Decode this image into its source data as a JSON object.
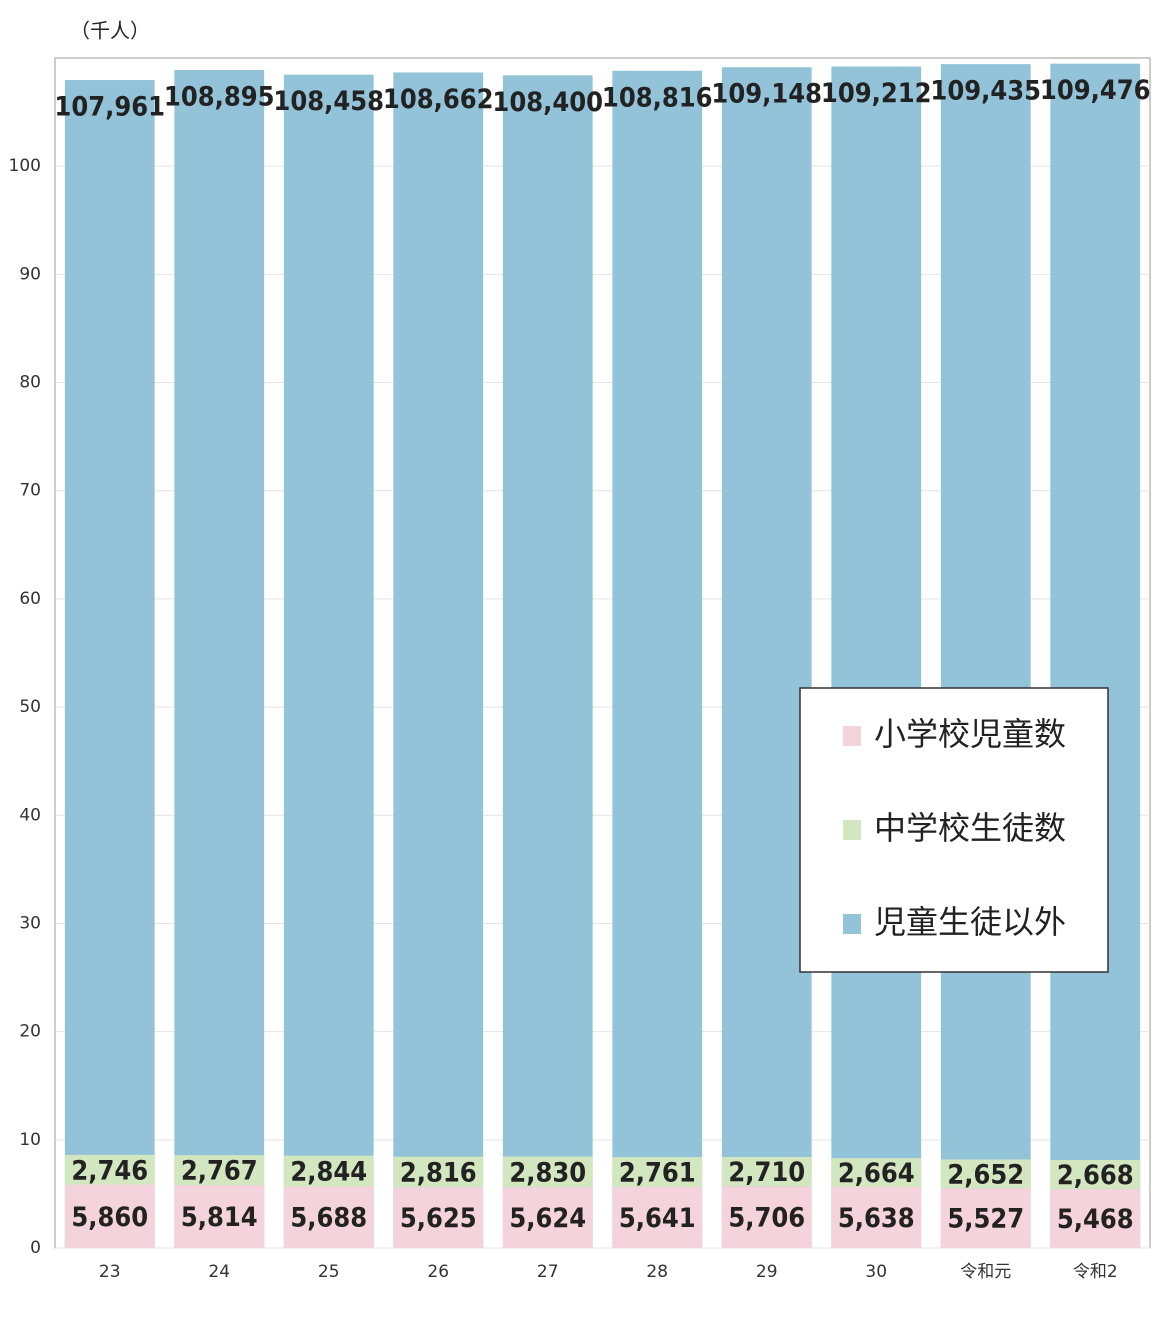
{
  "chart_data": {
    "type": "bar",
    "unit_label": "（千人）",
    "categories": [
      "23",
      "24",
      "25",
      "26",
      "27",
      "28",
      "29",
      "30",
      "令和元",
      "令和2"
    ],
    "series": [
      {
        "name": "小学校児童数",
        "color": "#f5d3dc",
        "values": [
          5.86,
          5.814,
          5.688,
          5.625,
          5.624,
          5.641,
          5.706,
          5.638,
          5.527,
          5.468
        ],
        "value_labels": [
          "5,860",
          "5,814",
          "5,688",
          "5,625",
          "5,624",
          "5,641",
          "5,706",
          "5,638",
          "5,527",
          "5,468"
        ]
      },
      {
        "name": "中学校生徒数",
        "color": "#d2e7c0",
        "values": [
          2.746,
          2.767,
          2.844,
          2.816,
          2.83,
          2.761,
          2.71,
          2.664,
          2.652,
          2.668
        ],
        "value_labels": [
          "2,746",
          "2,767",
          "2,844",
          "2,816",
          "2,830",
          "2,761",
          "2,710",
          "2,664",
          "2,652",
          "2,668"
        ]
      },
      {
        "name": "児童生徒以外",
        "color": "#93c3d8",
        "values": [
          107.961,
          108.895,
          108.458,
          108.662,
          108.4,
          108.816,
          109.148,
          109.212,
          109.435,
          109.476
        ],
        "value_labels": [
          "107,961",
          "108,895",
          "108,458",
          "108,662",
          "108,400",
          "108,816",
          "109,148",
          "109,212",
          "109,435",
          "109,476"
        ]
      }
    ],
    "ylim": [
      0,
      110
    ],
    "yticks": [
      0,
      10,
      20,
      30,
      40,
      50,
      60,
      70,
      80,
      90,
      100
    ],
    "grid": true
  }
}
